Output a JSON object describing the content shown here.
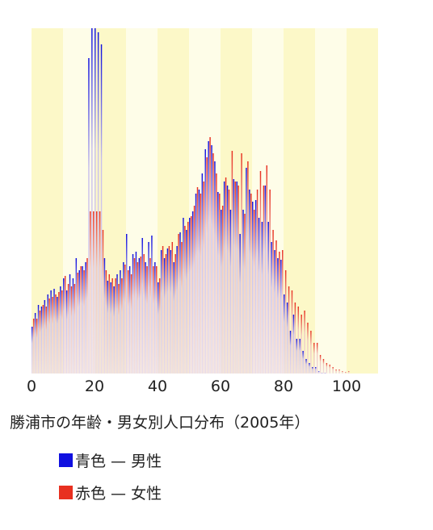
{
  "chart_data": {
    "type": "bar",
    "title": "勝浦市の年齢・男女別人口分布（2005年）",
    "x": [
      0,
      1,
      2,
      3,
      4,
      5,
      6,
      7,
      8,
      9,
      10,
      11,
      12,
      13,
      14,
      15,
      16,
      17,
      18,
      19,
      20,
      21,
      22,
      23,
      24,
      25,
      26,
      27,
      28,
      29,
      30,
      31,
      32,
      33,
      34,
      35,
      36,
      37,
      38,
      39,
      40,
      41,
      42,
      43,
      44,
      45,
      46,
      47,
      48,
      49,
      50,
      51,
      52,
      53,
      54,
      55,
      56,
      57,
      58,
      59,
      60,
      61,
      62,
      63,
      64,
      65,
      66,
      67,
      68,
      69,
      70,
      71,
      72,
      73,
      74,
      75,
      76,
      77,
      78,
      79,
      80,
      81,
      82,
      83,
      84,
      85,
      86,
      87,
      88,
      89,
      90,
      91,
      92,
      93,
      94,
      95,
      96,
      97,
      98,
      99,
      100
    ],
    "series": [
      {
        "name": "青色 — 男性",
        "color": "#1010e0",
        "values": [
          58,
          75,
          85,
          83,
          91,
          98,
          103,
          105,
          95,
          108,
          118,
          103,
          123,
          118,
          143,
          128,
          133,
          138,
          391,
          428,
          428,
          423,
          408,
          143,
          115,
          113,
          108,
          123,
          128,
          138,
          173,
          133,
          148,
          151,
          143,
          168,
          138,
          163,
          171,
          138,
          113,
          153,
          143,
          155,
          153,
          138,
          158,
          175,
          193,
          178,
          193,
          201,
          223,
          228,
          248,
          278,
          288,
          283,
          263,
          225,
          203,
          238,
          233,
          203,
          241,
          238,
          173,
          203,
          255,
          228,
          213,
          215,
          193,
          188,
          233,
          188,
          163,
          153,
          143,
          141,
          98,
          88,
          53,
          73,
          43,
          43,
          28,
          18,
          13,
          8,
          8,
          3,
          1,
          1,
          0,
          0,
          0,
          0,
          0,
          0,
          0
        ]
      },
      {
        "name": "赤色 — 女性",
        "color": "#e83020",
        "values": [
          68,
          68,
          78,
          85,
          83,
          93,
          95,
          98,
          101,
          103,
          121,
          111,
          108,
          111,
          125,
          133,
          128,
          143,
          201,
          201,
          201,
          201,
          178,
          128,
          123,
          118,
          118,
          111,
          118,
          135,
          128,
          123,
          143,
          138,
          145,
          148,
          133,
          143,
          133,
          133,
          118,
          158,
          148,
          158,
          163,
          148,
          173,
          163,
          183,
          188,
          195,
          208,
          231,
          223,
          238,
          268,
          293,
          273,
          248,
          223,
          208,
          243,
          228,
          276,
          238,
          233,
          273,
          198,
          263,
          223,
          203,
          228,
          251,
          233,
          258,
          228,
          178,
          165,
          151,
          153,
          128,
          108,
          103,
          88,
          83,
          73,
          78,
          63,
          53,
          38,
          38,
          23,
          18,
          13,
          11,
          8,
          5,
          5,
          3,
          2,
          3
        ]
      }
    ],
    "xlim": [
      0,
      110
    ],
    "xticks": [
      0,
      20,
      40,
      60,
      80,
      100
    ],
    "ylim": [
      0,
      428
    ]
  }
}
